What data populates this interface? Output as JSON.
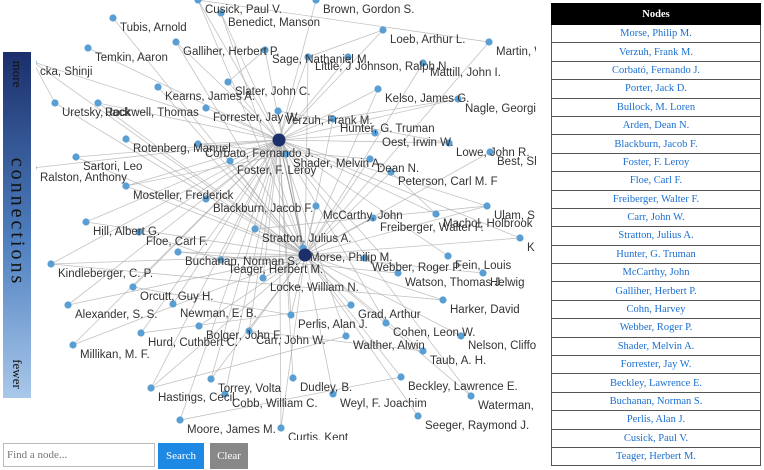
{
  "slider": {
    "top": "more",
    "label": "connections",
    "bottom": "fewer"
  },
  "graph": {
    "nodes": [
      {
        "label": "Cusick, Paul V."
      },
      {
        "label": "Brown, Gordon S."
      },
      {
        "label": "Tubis, Arnold"
      },
      {
        "label": "Benedict, Manson"
      },
      {
        "label": "Loeb, Arthur L."
      },
      {
        "label": "Martin, W"
      },
      {
        "label": "Galliher, Herbert P."
      },
      {
        "label": "Temkin, Aaron"
      },
      {
        "label": "Sage, Nathaniel M."
      },
      {
        "label": "Little, J"
      },
      {
        "label": "Johnson, Ralph N."
      },
      {
        "label": "Mattill, John I."
      },
      {
        "label": "cka, Shinji"
      },
      {
        "label": "Slater, John C."
      },
      {
        "label": "Kearns, James A."
      },
      {
        "label": "Kelso, James G."
      },
      {
        "label": "Nagle, Georgia"
      },
      {
        "label": "Uretsky, Jack"
      },
      {
        "label": "Rockwell, Thomas"
      },
      {
        "label": "Forrester, Jay W."
      },
      {
        "label": "Verzuh, Frank M."
      },
      {
        "label": "Hunter, G. Truman"
      },
      {
        "label": "Oest, Irwin W."
      },
      {
        "label": "Rotenberg, Manuel"
      },
      {
        "label": "Corbato, Fernando J."
      },
      {
        "label": "Lowe, John R."
      },
      {
        "label": "Best, Sh"
      },
      {
        "label": "Sartori, Leo"
      },
      {
        "label": "Shader, Melvin A."
      },
      {
        "label": "Dean N."
      },
      {
        "label": "Foster, F. Leroy"
      },
      {
        "label": "Ralston, Anthony"
      },
      {
        "label": "Peterson, Carl M. F"
      },
      {
        "label": "Mosteller, Frederick"
      },
      {
        "label": "Blackburn, Jacob F."
      },
      {
        "label": "McCarthy, John"
      },
      {
        "label": "Ulam, S"
      },
      {
        "label": "Machol, Holbrook"
      },
      {
        "label": "Freiberger, Walter F."
      },
      {
        "label": "Hill, Albert G."
      },
      {
        "label": "Floe, Carl F."
      },
      {
        "label": "Stratton, Julius A."
      },
      {
        "label": "K"
      },
      {
        "label": "Morse, Philip M."
      },
      {
        "label": "Buchanan, Norman S."
      },
      {
        "label": "Teager, Herbert M."
      },
      {
        "label": "Fein, Louis"
      },
      {
        "label": "Webber, Roger P."
      },
      {
        "label": "Kindleberger, C. P."
      },
      {
        "label": "Watson, Thomas J."
      },
      {
        "label": "Helwig"
      },
      {
        "label": "Locke, William N."
      },
      {
        "label": "Orcutt, Guy H."
      },
      {
        "label": "Harker, David"
      },
      {
        "label": "Alexander, S. S."
      },
      {
        "label": "Newman, E. B."
      },
      {
        "label": "Grad, Arthur"
      },
      {
        "label": "Perlis, Alan J."
      },
      {
        "label": "Cohen, Leon W."
      },
      {
        "label": "Bolger, John F."
      },
      {
        "label": "Carr, John W."
      },
      {
        "label": "Hurd, Cuthbert C."
      },
      {
        "label": "Nelson, Cliffor"
      },
      {
        "label": "Millikan, M. F."
      },
      {
        "label": "Walther, Alwin"
      },
      {
        "label": "Taub, A. H."
      },
      {
        "label": "Torrey, Volta"
      },
      {
        "label": "Dudley, B."
      },
      {
        "label": "Beckley, Lawrence E."
      },
      {
        "label": "Hastings, Cecil"
      },
      {
        "label": "Cobb, William C."
      },
      {
        "label": "Weyl, F. Joachim"
      },
      {
        "label": "Waterman,"
      },
      {
        "label": "Moore, James M."
      },
      {
        "label": "Seeger, Raymond J."
      },
      {
        "label": "Curtis, Kent"
      }
    ]
  },
  "table": {
    "header": "Nodes",
    "rows": [
      "Morse, Philip M.",
      "Verzuh, Frank M.",
      "Corbató, Fernando J.",
      "Porter, Jack D.",
      "Bullock, M. Loren",
      "Arden, Dean N.",
      "Blackburn, Jacob F.",
      "Foster, F. Leroy",
      "Floe, Carl F.",
      "Freiberger, Walter F.",
      "Carr, John W.",
      "Stratton, Julius A.",
      "Hunter, G. Truman",
      "McCarthy, John",
      "Galliher, Herbert P.",
      "Cohn, Harvey",
      "Webber, Roger P.",
      "Shader, Melvin A.",
      "Forrester, Jay W.",
      "Beckley, Lawrence E.",
      "Buchanan, Norman S.",
      "Perlis, Alan J.",
      "Cusick, Paul V.",
      "Teager, Herbert M."
    ]
  },
  "search": {
    "placeholder": "Find a node...",
    "buttons": [
      "Search",
      "Clear"
    ]
  }
}
